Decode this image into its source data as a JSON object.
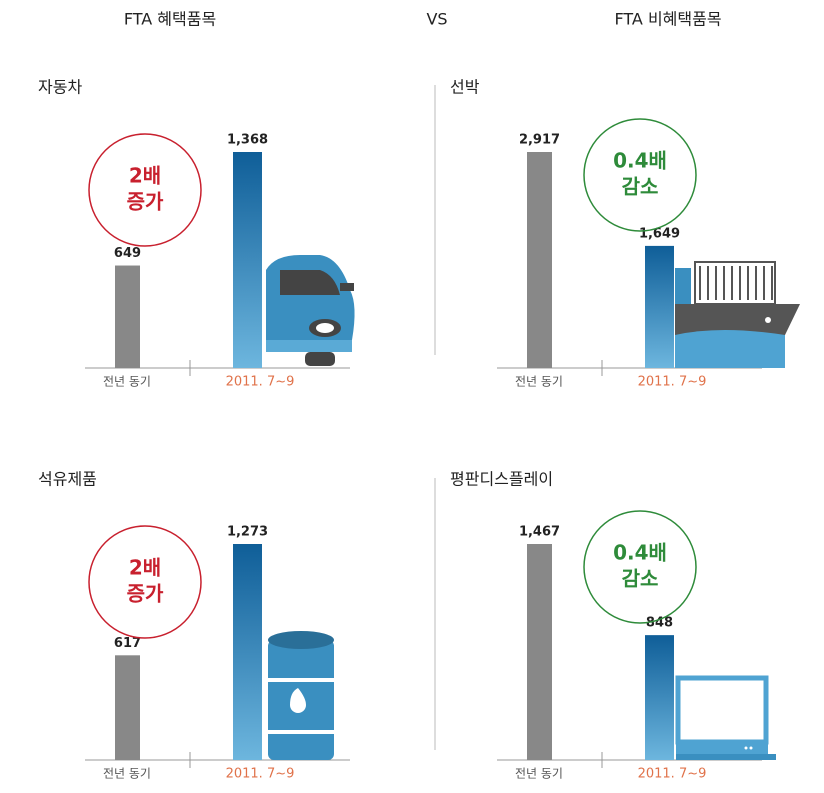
{
  "header": {
    "left": "FTA 혜택품목",
    "middle": "VS",
    "right": "FTA 비혜택품목"
  },
  "chart_data": [
    {
      "type": "bar",
      "title": "자동차",
      "categories": [
        "전년 동기",
        "2011. 7~9"
      ],
      "values": [
        649,
        1368
      ],
      "value_labels": [
        "649",
        "1,368"
      ],
      "colors": [
        "#888888",
        "#1f6fa8"
      ],
      "annotation": [
        "2배",
        "증가"
      ],
      "annotation_color": "#c8202e"
    },
    {
      "type": "bar",
      "title": "선박",
      "categories": [
        "전년 동기",
        "2011. 7~9"
      ],
      "values": [
        2917,
        1649
      ],
      "value_labels": [
        "2,917",
        "1,649"
      ],
      "colors": [
        "#888888",
        "#1f6fa8"
      ],
      "annotation": [
        "0.4배",
        "감소"
      ],
      "annotation_color": "#2e8b3a"
    },
    {
      "type": "bar",
      "title": "석유제품",
      "categories": [
        "전년 동기",
        "2011. 7~9"
      ],
      "values": [
        617,
        1273
      ],
      "value_labels": [
        "617",
        "1,273"
      ],
      "colors": [
        "#888888",
        "#1f6fa8"
      ],
      "annotation": [
        "2배",
        "증가"
      ],
      "annotation_color": "#c8202e"
    },
    {
      "type": "bar",
      "title": "평판디스플레이",
      "categories": [
        "전년 동기",
        "2011. 7~9"
      ],
      "values": [
        1467,
        848
      ],
      "value_labels": [
        "1,467",
        "848"
      ],
      "colors": [
        "#888888",
        "#1f6fa8"
      ],
      "annotation": [
        "0.4배",
        "감소"
      ],
      "annotation_color": "#2e8b3a"
    }
  ]
}
